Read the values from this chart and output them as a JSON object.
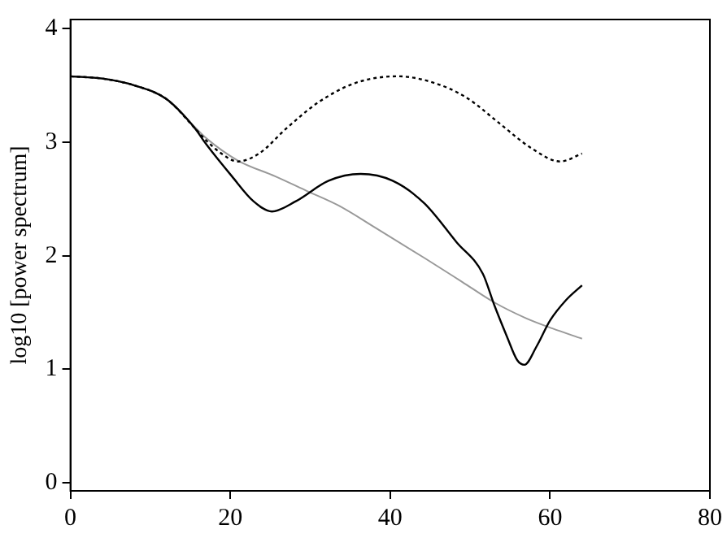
{
  "chart_data": {
    "type": "line",
    "ylabel": "log10 [power spectrum]",
    "xlim": [
      0,
      80
    ],
    "xticks": [
      0,
      20,
      40,
      60,
      80
    ],
    "ylim": [
      -0.07,
      4.08
    ],
    "yticks": [
      0,
      1,
      2,
      3,
      4
    ],
    "grid": false,
    "legend": false,
    "marker": "none",
    "series": [
      {
        "color": "#000000",
        "line_style": "solid",
        "x": [
          0,
          4,
          8,
          12,
          15.6,
          16.9,
          20.2,
          22.9,
          25.2,
          28.2,
          32.3,
          36.3,
          40.3,
          44.3,
          48.3,
          51.6,
          53,
          54.6,
          55.9,
          56.8,
          58.3,
          60,
          62,
          64
        ],
        "values": [
          3.58,
          3.56,
          3.5,
          3.38,
          3.12,
          2.99,
          2.7,
          2.48,
          2.39,
          2.48,
          2.66,
          2.72,
          2.66,
          2.46,
          2.12,
          1.84,
          1.57,
          1.29,
          1.08,
          1.04,
          1.2,
          1.43,
          1.61,
          1.74
        ]
      },
      {
        "color": "#000000",
        "line_style": "dotted",
        "x": [
          0,
          4,
          8,
          12,
          15.6,
          16.9,
          18.9,
          20.9,
          23.6,
          27,
          31,
          35.6,
          40.9,
          45.6,
          49.6,
          53.6,
          57.6,
          61.3,
          64
        ],
        "values": [
          3.58,
          3.56,
          3.5,
          3.38,
          3.12,
          3.02,
          2.9,
          2.83,
          2.9,
          3.12,
          3.35,
          3.52,
          3.58,
          3.52,
          3.39,
          3.17,
          2.95,
          2.83,
          2.9
        ]
      },
      {
        "color": "#999999",
        "line_style": "solid",
        "x": [
          0,
          4,
          8,
          12,
          15.6,
          16.9,
          20.9,
          25.6,
          29.6,
          33.6,
          38.3,
          44.3,
          49,
          53,
          57,
          60.3,
          64
        ],
        "values": [
          3.58,
          3.56,
          3.5,
          3.38,
          3.13,
          3.04,
          2.84,
          2.7,
          2.57,
          2.44,
          2.24,
          1.98,
          1.77,
          1.59,
          1.45,
          1.36,
          1.27
        ]
      }
    ]
  }
}
